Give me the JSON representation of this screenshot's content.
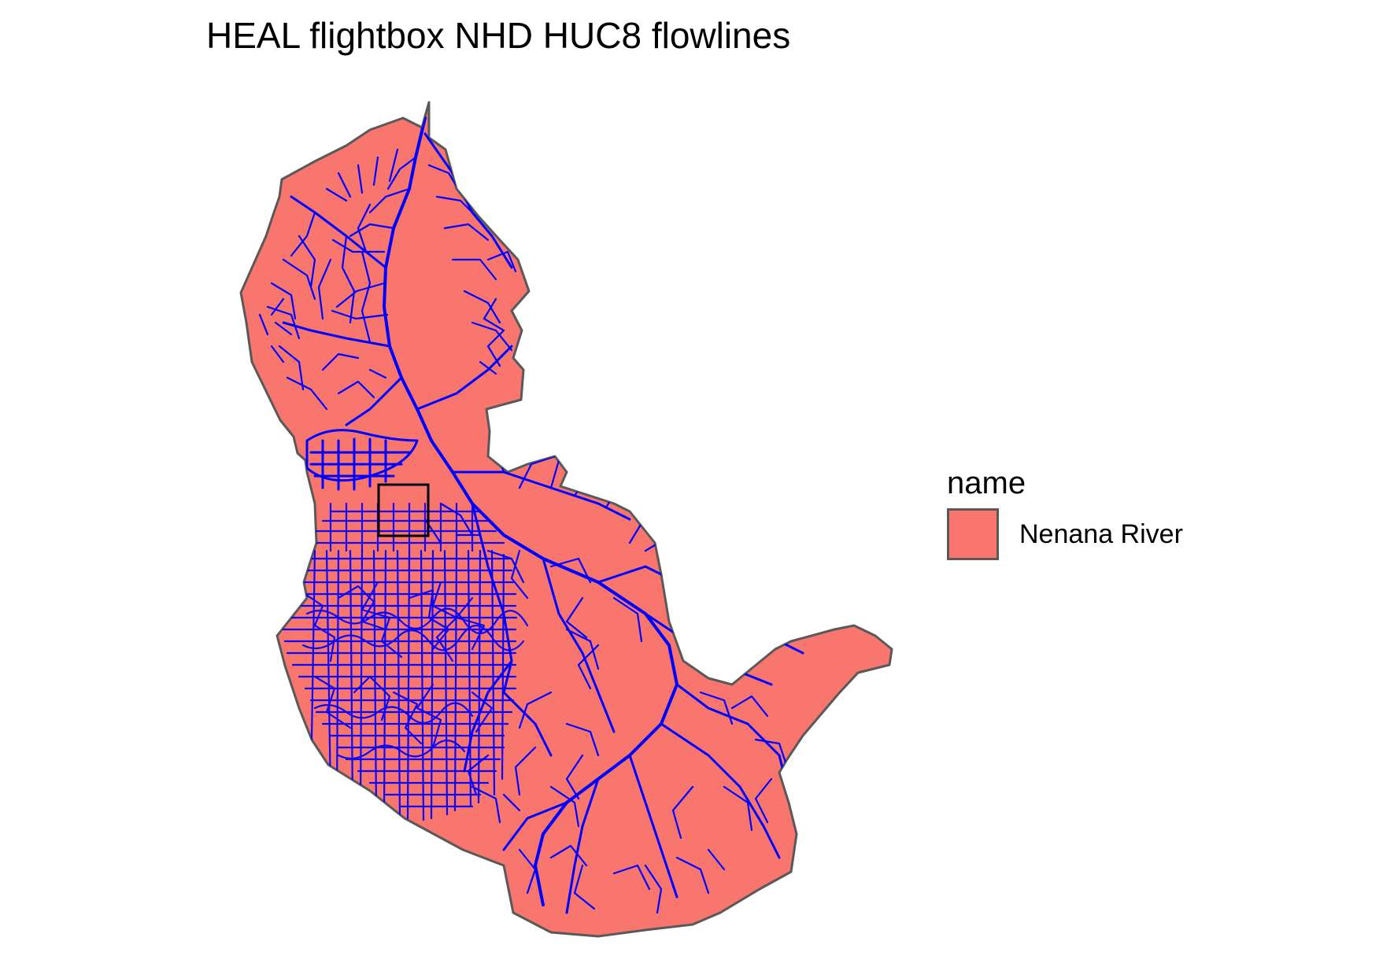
{
  "title": "HEAL flightbox NHD HUC8 flowlines",
  "colors": {
    "basin_fill": "#f8766d",
    "basin_outline": "#595959",
    "flowline": "#0000ff",
    "flightbox": "#000000"
  },
  "legend": {
    "title": "name",
    "items": [
      {
        "label": "Nenana River",
        "color": "#f8766d"
      }
    ]
  },
  "layers": [
    "HUC8 basin polygon",
    "NHD flowlines",
    "flightbox rectangle"
  ]
}
